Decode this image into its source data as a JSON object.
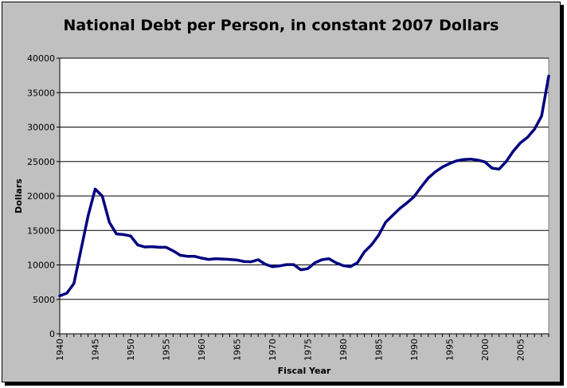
{
  "chart_data": {
    "type": "line",
    "title": "National Debt per Person, in constant 2007 Dollars",
    "xlabel": "Fiscal Year",
    "ylabel": "Dollars",
    "xlim": [
      1940,
      2009
    ],
    "ylim": [
      0,
      40000
    ],
    "x_ticks": [
      1940,
      1945,
      1950,
      1955,
      1960,
      1965,
      1970,
      1975,
      1980,
      1985,
      1990,
      1995,
      2000,
      2005
    ],
    "y_ticks": [
      0,
      5000,
      10000,
      15000,
      20000,
      25000,
      30000,
      35000,
      40000
    ],
    "grid": "horizontal",
    "legend": "none",
    "colors": {
      "line": "#000080",
      "plot_background": "#ffffff",
      "chart_background": "#c0c0c0"
    },
    "series": [
      {
        "x": [
          1940,
          1941,
          1942,
          1943,
          1944,
          1945,
          1946,
          1947,
          1948,
          1949,
          1950,
          1951,
          1952,
          1953,
          1954,
          1955,
          1956,
          1957,
          1958,
          1959,
          1960,
          1961,
          1962,
          1963,
          1964,
          1965,
          1966,
          1967,
          1968,
          1969,
          1970,
          1971,
          1972,
          1973,
          1974,
          1975,
          1976,
          1977,
          1978,
          1979,
          1980,
          1981,
          1982,
          1983,
          1984,
          1985,
          1986,
          1987,
          1988,
          1989,
          1990,
          1991,
          1992,
          1993,
          1994,
          1995,
          1996,
          1997,
          1998,
          1999,
          2000,
          2001,
          2002,
          2003,
          2004,
          2005,
          2006,
          2007,
          2008,
          2009
        ],
        "values": [
          5500,
          5900,
          7300,
          12200,
          17100,
          21000,
          20000,
          16200,
          14500,
          14400,
          14200,
          12900,
          12600,
          12650,
          12550,
          12550,
          12050,
          11400,
          11250,
          11250,
          11000,
          10800,
          10900,
          10850,
          10800,
          10700,
          10500,
          10450,
          10750,
          10100,
          9750,
          9850,
          10050,
          10050,
          9300,
          9450,
          10300,
          10750,
          10900,
          10300,
          9900,
          9750,
          10300,
          11900,
          12900,
          14300,
          16200,
          17200,
          18200,
          19000,
          19900,
          21300,
          22600,
          23500,
          24200,
          24700,
          25100,
          25300,
          25350,
          25200,
          24950,
          24050,
          23900,
          25000,
          26500,
          27700,
          28500,
          29700,
          31600,
          37400
        ]
      }
    ]
  }
}
